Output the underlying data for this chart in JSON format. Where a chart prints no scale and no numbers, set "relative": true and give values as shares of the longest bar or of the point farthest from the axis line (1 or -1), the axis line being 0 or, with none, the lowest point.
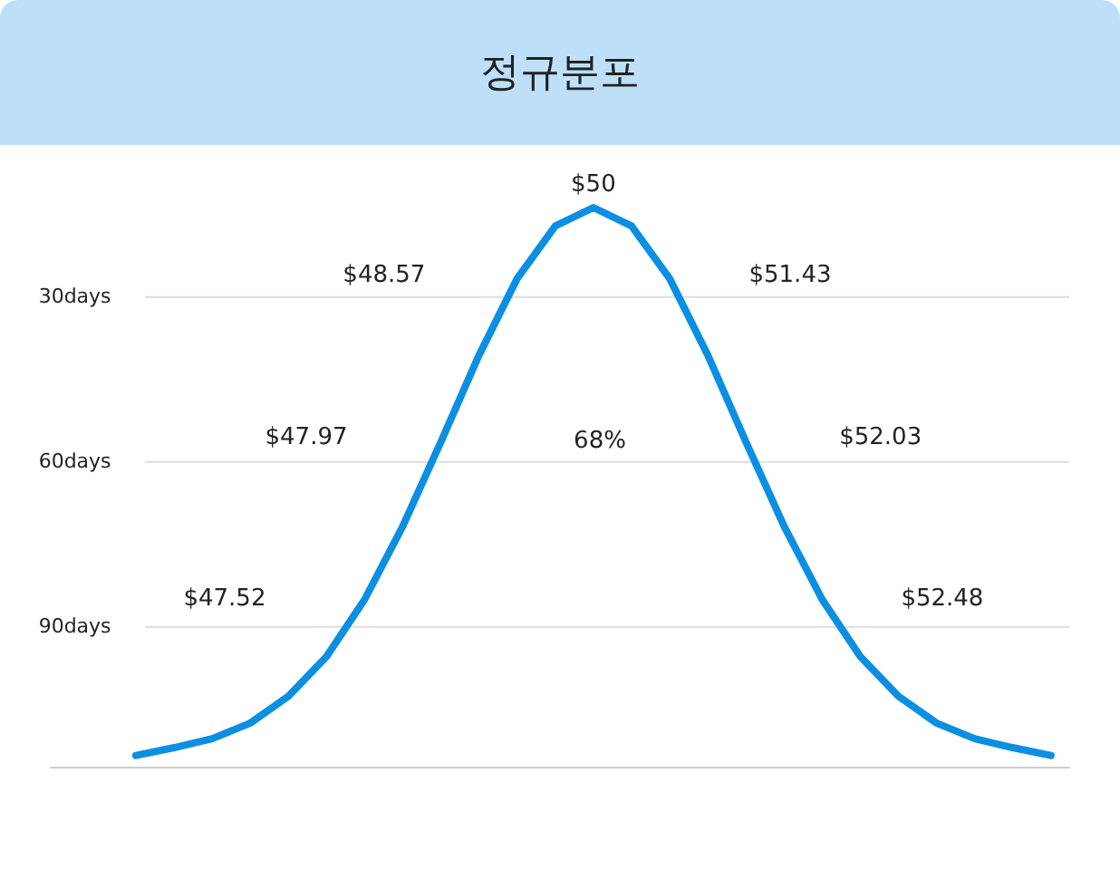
{
  "chart_data": {
    "type": "line",
    "title": "정규분포",
    "relative": true,
    "tick_labels": false,
    "line_style": "solid",
    "categories": [
      null,
      null,
      null,
      null,
      null,
      null,
      null,
      null,
      null,
      null,
      null,
      null,
      null,
      null,
      null,
      null,
      null,
      null,
      null,
      null,
      null,
      null,
      null,
      null,
      null
    ],
    "series": [
      {
        "color": "#0b8fe3",
        "values": [
          0.02,
          0.034,
          0.05,
          0.078,
          0.126,
          0.197,
          0.299,
          0.43,
          0.581,
          0.736,
          0.873,
          0.967,
          1,
          0.967,
          0.873,
          0.736,
          0.581,
          0.43,
          0.299,
          0.197,
          0.126,
          0.078,
          0.05,
          0.034,
          0.02
        ]
      }
    ],
    "ref_lines": [
      {
        "axis": "y",
        "value": 0.84,
        "label": "30days",
        "color": "#dddddd"
      },
      {
        "axis": "y",
        "value": 0.545,
        "label": "60days",
        "color": "#dddddd"
      },
      {
        "axis": "y",
        "value": 0.25,
        "label": "90days",
        "color": "#dddddd"
      }
    ],
    "annotations": [
      "$50",
      "$48.57",
      "$51.43",
      "$47.97",
      "68%",
      "$52.03",
      "$47.52",
      "$52.48"
    ]
  }
}
